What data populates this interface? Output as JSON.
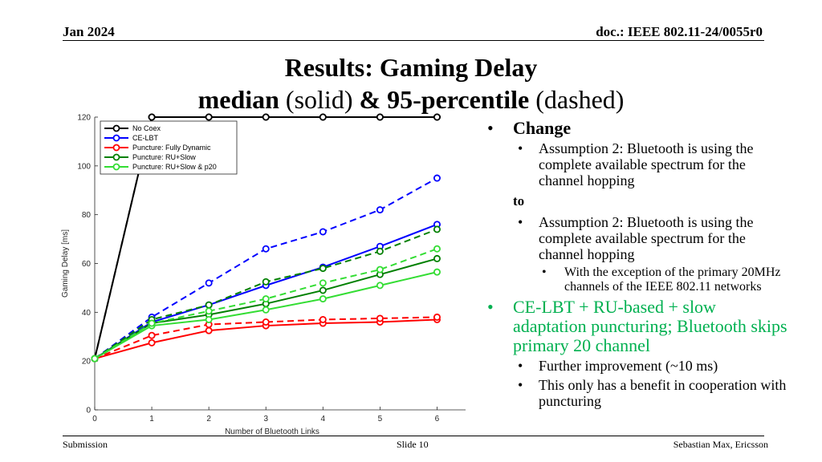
{
  "header": {
    "date": "Jan 2024",
    "doc": "doc.: IEEE 802.11-24/0055r0"
  },
  "title": {
    "line1": "Results: Gaming Delay",
    "line2_a": "median",
    "line2_b": " (solid) ",
    "line2_c": "& 95-percentile",
    "line2_d": " (dashed)"
  },
  "bullets": {
    "change": "Change",
    "change_sub": "Assumption 2: Bluetooth is using the complete available spectrum for the channel hopping",
    "to": "to",
    "to_sub": "Assumption 2: Bluetooth is using the complete available spectrum for the channel hopping",
    "to_subsub": "With the exception of the primary 20MHz channels of the IEEE 802.11 networks",
    "main": "CE-LBT + RU-based + slow adaptation puncturing; Bluetooth skips primary 20 channel",
    "main_sub1": "Further improvement (~10 ms)",
    "main_sub2": "This only has a benefit in cooperation with puncturing",
    "main_color": "#00b050"
  },
  "footer": {
    "left": "Submission",
    "center": "Slide 10",
    "right": "Sebastian Max, Ericsson"
  },
  "chart_data": {
    "type": "line",
    "xlabel": "Number of Bluetooth Links",
    "ylabel": "Gaming Delay [ms]",
    "xlim": [
      0,
      6.5
    ],
    "ylim": [
      0,
      120
    ],
    "xticks": [
      0,
      1,
      2,
      3,
      4,
      5,
      6
    ],
    "yticks": [
      0,
      20,
      40,
      60,
      80,
      100,
      120
    ],
    "legend_position": "top-left",
    "x": [
      0,
      1,
      2,
      3,
      4,
      5,
      6
    ],
    "series": [
      {
        "name": "No Coex",
        "color": "#000000",
        "median": [
          21,
          120,
          120,
          120,
          120,
          120,
          120
        ],
        "p95": [
          21,
          120,
          120,
          120,
          120,
          120,
          120
        ]
      },
      {
        "name": "CE-LBT",
        "color": "#0000ff",
        "median": [
          21,
          36,
          43,
          51,
          58.5,
          67,
          76
        ],
        "p95": [
          21,
          38,
          52,
          66,
          73,
          82,
          95
        ]
      },
      {
        "name": "Puncture: Fully Dynamic",
        "color": "#ff0000",
        "median": [
          21,
          27.5,
          32.5,
          34.5,
          35.5,
          36,
          37
        ],
        "p95": [
          21,
          30.5,
          35,
          36,
          37,
          37.5,
          38
        ]
      },
      {
        "name": "Puncture: RU+Slow",
        "color": "#008000",
        "median": [
          21,
          35.5,
          39,
          43.5,
          49,
          55.5,
          62
        ],
        "p95": [
          21,
          37,
          43,
          52.5,
          58,
          65,
          74
        ]
      },
      {
        "name": "Puncture: RU+Slow & p20",
        "color": "#33dd33",
        "median": [
          21,
          34.5,
          37,
          41,
          45.5,
          51,
          56.5
        ],
        "p95": [
          21,
          35.5,
          40.5,
          45.5,
          52,
          57.5,
          66
        ]
      }
    ]
  }
}
